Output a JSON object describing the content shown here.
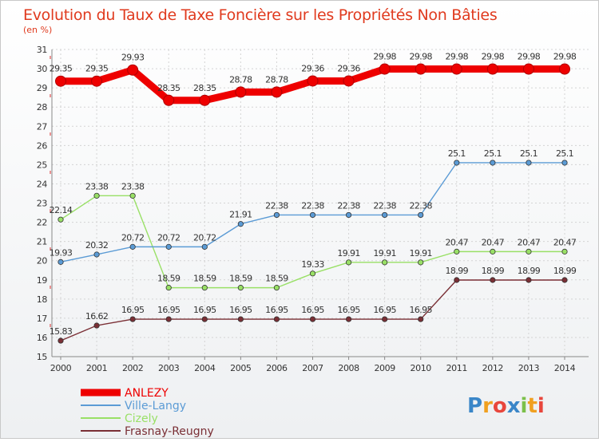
{
  "chart_data": {
    "type": "line",
    "title": "Evolution du Taux de Taxe Foncière sur les Propriétés Non Bâties",
    "ylabel": "(en %)",
    "xlabel": "",
    "ylim": [
      15,
      31
    ],
    "yticks": [
      "15",
      "16",
      "17",
      "18",
      "19",
      "20",
      "21",
      "22",
      "23",
      "24",
      "25",
      "26",
      "27",
      "28",
      "29",
      "30",
      "31"
    ],
    "categories": [
      "2000",
      "2001",
      "2002",
      "2003",
      "2004",
      "2005",
      "2006",
      "2007",
      "2008",
      "2009",
      "2010",
      "2011",
      "2012",
      "2013",
      "2014"
    ],
    "series": [
      {
        "name": "ANLEZY",
        "color": "#ee0000",
        "values": [
          29.35,
          29.35,
          29.93,
          28.35,
          28.35,
          28.78,
          28.78,
          29.36,
          29.36,
          29.98,
          29.98,
          29.98,
          29.98,
          29.98,
          29.98
        ],
        "labels": [
          "29.35",
          "29.35",
          "29.93",
          "28.35",
          "28.35",
          "28.78",
          "28.78",
          "29.36",
          "29.36",
          "29.98",
          "29.98",
          "29.98",
          "29.98",
          "29.98",
          "29.98"
        ]
      },
      {
        "name": "Ville-Langy",
        "color": "#5b9bd5",
        "values": [
          19.93,
          20.32,
          20.72,
          20.72,
          20.72,
          21.91,
          22.38,
          22.38,
          22.38,
          22.38,
          22.38,
          25.1,
          25.1,
          25.1,
          25.1
        ],
        "labels": [
          "19.93",
          "20.32",
          "20.72",
          "20.72",
          "20.72",
          "21.91",
          "22.38",
          "22.38",
          "22.38",
          "22.38",
          "22.38",
          "25.1",
          "25.1",
          "25.1",
          "25.1"
        ]
      },
      {
        "name": "Cizely",
        "color": "#99e066",
        "values": [
          22.14,
          23.38,
          23.38,
          18.59,
          18.59,
          18.59,
          18.59,
          19.33,
          19.91,
          19.91,
          19.91,
          20.47,
          20.47,
          20.47,
          20.47
        ],
        "labels": [
          "22.14",
          "23.38",
          "23.38",
          "18.59",
          "18.59",
          "18.59",
          "18.59",
          "19.33",
          "19.91",
          "19.91",
          "19.91",
          "20.47",
          "20.47",
          "20.47",
          "20.47"
        ]
      },
      {
        "name": "Frasnay-Reugny",
        "color": "#7a2f35",
        "values": [
          15.83,
          16.62,
          16.95,
          16.95,
          16.95,
          16.95,
          16.95,
          16.95,
          16.95,
          16.95,
          16.95,
          18.99,
          18.99,
          18.99,
          18.99
        ],
        "labels": [
          "15.83",
          "16.62",
          "16.95",
          "16.95",
          "16.95",
          "16.95",
          "16.95",
          "16.95",
          "16.95",
          "16.95",
          "16.95",
          "18.99",
          "18.99",
          "18.99",
          "18.99"
        ]
      }
    ],
    "legend_position": "bottom-left",
    "grid": true
  },
  "branding": {
    "logo_text": "Proxiti",
    "letter_colors": [
      "#3a86c8",
      "#f0a020",
      "#e8463c",
      "#3a86c8",
      "#7cc04a",
      "#f0a020",
      "#e8463c"
    ]
  }
}
